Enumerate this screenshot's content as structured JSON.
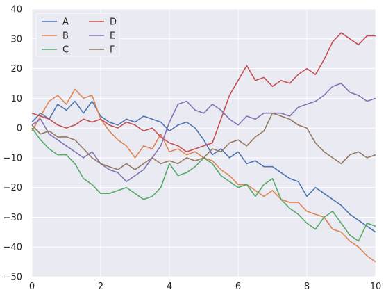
{
  "chart_data": {
    "type": "line",
    "title": "",
    "xlabel": "",
    "ylabel": "",
    "xlim": [
      0,
      10
    ],
    "ylim": [
      -50,
      40
    ],
    "x_ticks": [
      "0",
      "2",
      "4",
      "6",
      "8",
      "10"
    ],
    "y_ticks": [
      "−50",
      "−40",
      "−30",
      "−20",
      "−10",
      "0",
      "10",
      "20",
      "30",
      "40"
    ],
    "grid": true,
    "background": "#eaeaf2",
    "legend": {
      "placement": "top-left",
      "columns": 2
    },
    "x": [
      0,
      0.25,
      0.5,
      0.75,
      1,
      1.25,
      1.5,
      1.75,
      2,
      2.25,
      2.5,
      2.75,
      3,
      3.25,
      3.5,
      3.75,
      4,
      4.25,
      4.5,
      4.75,
      5,
      5.25,
      5.5,
      5.75,
      6,
      6.25,
      6.5,
      6.75,
      7,
      7.25,
      7.5,
      7.75,
      8,
      8.25,
      8.5,
      8.75,
      9,
      9.25,
      9.5,
      9.75,
      10
    ],
    "series": [
      {
        "name": "A",
        "color": "#4c72b0",
        "values": [
          2,
          5,
          3,
          8,
          6,
          9,
          5,
          9,
          4,
          2,
          1,
          3,
          2,
          4,
          3,
          2,
          -1,
          1,
          2,
          0,
          -4,
          -9,
          -7,
          -10,
          -8,
          -12,
          -11,
          -13,
          -13,
          -15,
          -17,
          -18,
          -23,
          -20,
          -22,
          -24,
          -26,
          -29,
          -31,
          -33,
          -35
        ]
      },
      {
        "name": "B",
        "color": "#dd8452",
        "values": [
          -1,
          4,
          9,
          11,
          8,
          13,
          10,
          11,
          3,
          -1,
          -4,
          -6,
          -10,
          -6,
          -7,
          -2,
          -8,
          -7,
          -9,
          -8,
          -10,
          -11,
          -14,
          -16,
          -19,
          -19,
          -21,
          -23,
          -21,
          -24,
          -25,
          -25,
          -28,
          -29,
          -30,
          -34,
          -35,
          -38,
          -40,
          -43,
          -45
        ]
      },
      {
        "name": "C",
        "color": "#55a868",
        "values": [
          0,
          -4,
          -7,
          -9,
          -9,
          -12,
          -17,
          -19,
          -22,
          -22,
          -21,
          -20,
          -22,
          -24,
          -23,
          -20,
          -12,
          -16,
          -15,
          -13,
          -10,
          -12,
          -16,
          -18,
          -20,
          -19,
          -23,
          -19,
          -17,
          -24,
          -27,
          -29,
          -32,
          -34,
          -30,
          -28,
          -32,
          -36,
          -38,
          -32,
          -33
        ]
      },
      {
        "name": "D",
        "color": "#c44e52",
        "values": [
          5,
          4,
          3,
          1,
          0,
          1,
          3,
          2,
          3,
          1,
          0,
          2,
          1,
          -1,
          0,
          -3,
          -5,
          -6,
          -8,
          -7,
          -6,
          -5,
          3,
          11,
          16,
          21,
          16,
          17,
          14,
          16,
          15,
          18,
          20,
          18,
          23,
          29,
          32,
          30,
          28,
          31,
          31
        ]
      },
      {
        "name": "E",
        "color": "#8172b2",
        "values": [
          1,
          3,
          -2,
          -4,
          -6,
          -8,
          -10,
          -8,
          -12,
          -14,
          -15,
          -18,
          -16,
          -14,
          -10,
          -6,
          2,
          8,
          9,
          6,
          5,
          8,
          6,
          3,
          1,
          4,
          3,
          5,
          5,
          5,
          4,
          7,
          8,
          9,
          11,
          14,
          15,
          12,
          11,
          9,
          10
        ]
      },
      {
        "name": "F",
        "color": "#937860",
        "values": [
          1,
          -2,
          -1,
          -3,
          -3,
          -4,
          -7,
          -10,
          -12,
          -13,
          -14,
          -12,
          -14,
          -12,
          -10,
          -12,
          -11,
          -12,
          -10,
          -11,
          -10,
          -7,
          -8,
          -5,
          -4,
          -6,
          -3,
          -1,
          5,
          4,
          3,
          1,
          0,
          -5,
          -8,
          -10,
          -12,
          -9,
          -8,
          -10,
          -9
        ]
      }
    ]
  }
}
